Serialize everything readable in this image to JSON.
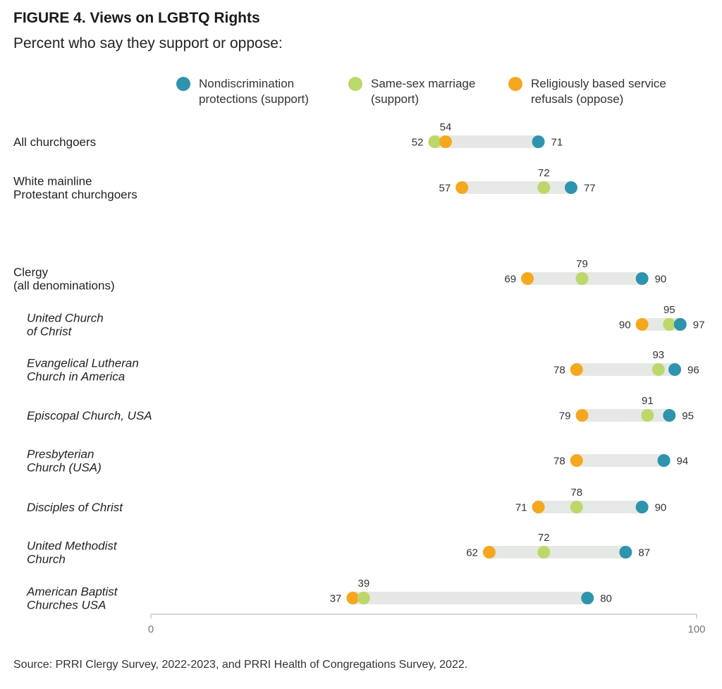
{
  "title": "FIGURE 4.  Views on LGBTQ Rights",
  "subtitle": "Percent who say they support or oppose:",
  "source": "Source: PRRI Clergy Survey, 2022-2023, and PRRI Health of Congregations Survey, 2022.",
  "colors": {
    "nondiscrimination": "#2e93ad",
    "marriage": "#bcd86a",
    "refusals": "#f5a81e",
    "range_bar": "#e6e8e6",
    "axis": "#c8c8c8"
  },
  "chart_data": {
    "type": "dot-range",
    "xlim": [
      0,
      100
    ],
    "ticks": [
      "0",
      "100"
    ],
    "legend_position": "top",
    "series": [
      {
        "key": "nondiscrimination",
        "name": "Nondiscrimination protections (support)"
      },
      {
        "key": "marriage",
        "name": "Same-sex marriage (support)"
      },
      {
        "key": "refusals",
        "name": "Religiously based service refusals (oppose)"
      }
    ],
    "rows": [
      {
        "label": [
          "All churchgoers"
        ],
        "italic": false,
        "nondiscrimination": 71,
        "marriage": 52,
        "refusals": 54
      },
      {
        "label": [
          "White mainline",
          "Protestant churchgoers"
        ],
        "italic": false,
        "nondiscrimination": 77,
        "marriage": 72,
        "refusals": 57
      },
      {
        "label": [
          "Clergy",
          "(all denominations)"
        ],
        "italic": false,
        "nondiscrimination": 90,
        "marriage": 79,
        "refusals": 69
      },
      {
        "label": [
          "United Church",
          "of Christ"
        ],
        "italic": true,
        "nondiscrimination": 97,
        "marriage": 95,
        "refusals": 90
      },
      {
        "label": [
          "Evangelical Lutheran",
          "Church in America"
        ],
        "italic": true,
        "nondiscrimination": 96,
        "marriage": 93,
        "refusals": 78
      },
      {
        "label": [
          "Episcopal Church, USA"
        ],
        "italic": true,
        "nondiscrimination": 95,
        "marriage": 91,
        "refusals": 79
      },
      {
        "label": [
          "Presbyterian",
          "Church (USA)"
        ],
        "italic": true,
        "nondiscrimination": 94,
        "marriage": 94,
        "refusals": 78
      },
      {
        "label": [
          "Disciples of Christ"
        ],
        "italic": true,
        "nondiscrimination": 90,
        "marriage": 78,
        "refusals": 71
      },
      {
        "label": [
          "United Methodist",
          "Church"
        ],
        "italic": true,
        "nondiscrimination": 87,
        "marriage": 72,
        "refusals": 62
      },
      {
        "label": [
          "American Baptist",
          "Churches USA"
        ],
        "italic": true,
        "nondiscrimination": 80,
        "marriage": 39,
        "refusals": 37
      }
    ]
  }
}
